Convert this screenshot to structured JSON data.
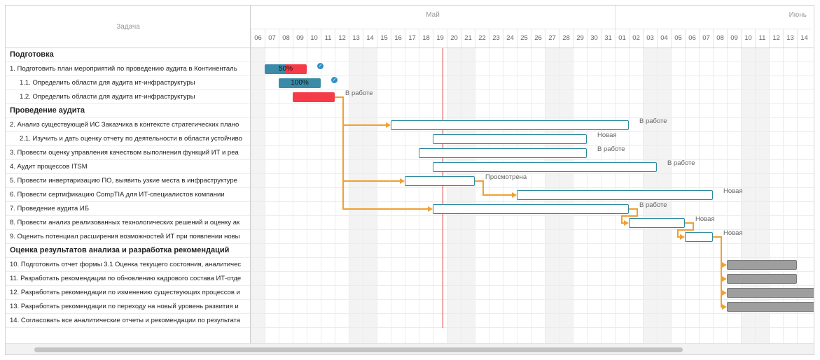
{
  "header": {
    "task_column": "Задача"
  },
  "months": [
    {
      "label": "Май"
    },
    {
      "label": "Июнь"
    }
  ],
  "days": [
    "06",
    "07",
    "08",
    "09",
    "10",
    "11",
    "12",
    "13",
    "14",
    "15",
    "16",
    "17",
    "18",
    "19",
    "20",
    "21",
    "22",
    "23",
    "24",
    "25",
    "26",
    "27",
    "28",
    "29",
    "30",
    "31",
    "01",
    "02",
    "03",
    "04",
    "05",
    "06",
    "07",
    "08",
    "09",
    "10",
    "11",
    "12",
    "13",
    "14"
  ],
  "weekend_days_index": [
    0,
    7,
    8,
    14,
    15,
    21,
    22,
    28,
    29,
    35,
    36
  ],
  "tasks": [
    {
      "label": "Подготовка",
      "group": true
    },
    {
      "label": "1. Подготовить план мероприятий по проведению аудита в Континенталь",
      "indent": 0
    },
    {
      "label": "1.1. Определить области для аудита ит-инфраструктуры",
      "indent": 1
    },
    {
      "label": "1.2. Определить области для аудита ит-инфраструктуры",
      "indent": 1
    },
    {
      "label": "Проведение аудита",
      "group": true
    },
    {
      "label": "2. Анализ существующей ИС Заказчика в контексте стратегических плано",
      "indent": 0
    },
    {
      "label": "2.1. Изучить и дать оценку отчету по деятельности в области устойчиво",
      "indent": 1
    },
    {
      "label": "3. Провести оценку управления качеством выполнения функций ИТ и реа",
      "indent": 0
    },
    {
      "label": "4. Аудит процессов ITSM",
      "indent": 0
    },
    {
      "label": "5. Провести инвертаризацию ПО, выявить узкие места в инфраструктуре",
      "indent": 0
    },
    {
      "label": "6. Провести сертификацию CompTIA для ИТ-специалистов компании",
      "indent": 0
    },
    {
      "label": "7. Проведение аудита ИБ",
      "indent": 0
    },
    {
      "label": "8. Провести анализ реализованных технологических решений и оценку ак",
      "indent": 0
    },
    {
      "label": "9. Оценить потенциал расширения возможностей ИТ при появлении новы",
      "indent": 0
    },
    {
      "label": "Оценка результатов анализа и разработка рекомендаций",
      "group": true
    },
    {
      "label": "10. Подготовить отчет формы 3.1 Оценка текущего состояния, аналитичес",
      "indent": 0
    },
    {
      "label": "11. Разработать рекомендации по обновлению кадрового состава ИТ-отде",
      "indent": 0
    },
    {
      "label": "12. Разработать рекомендации по изменению существующих процессов и",
      "indent": 0
    },
    {
      "label": "13. Разработать рекомендации по переходу на новый уровень развития и",
      "indent": 0
    },
    {
      "label": "14. Согласовать все аналитические отчеты и рекомендации по результата",
      "indent": 0
    }
  ],
  "today_day_index": 13.7,
  "bars": [
    {
      "row": 1,
      "start": 1,
      "end": 4,
      "style": "done",
      "progress": 0.5,
      "label": "50%",
      "check": true
    },
    {
      "row": 2,
      "start": 2,
      "end": 5,
      "style": "done",
      "progress": 1.0,
      "label": "100%",
      "check": true
    },
    {
      "row": 3,
      "start": 3,
      "end": 6,
      "style": "red",
      "status": "В работе"
    },
    {
      "row": 5,
      "start": 10,
      "end": 27,
      "style": "new",
      "status": "В работе"
    },
    {
      "row": 6,
      "start": 13,
      "end": 24,
      "style": "new",
      "status": "Новая"
    },
    {
      "row": 7,
      "start": 12,
      "end": 24,
      "style": "new",
      "status": "В работе"
    },
    {
      "row": 8,
      "start": 13,
      "end": 29,
      "style": "new",
      "status": "В работе"
    },
    {
      "row": 9,
      "start": 11,
      "end": 16,
      "style": "new",
      "status": "Просмотрена"
    },
    {
      "row": 10,
      "start": 19,
      "end": 33,
      "style": "new",
      "status": "Новая"
    },
    {
      "row": 11,
      "start": 13,
      "end": 27,
      "style": "new",
      "status": "В работе"
    },
    {
      "row": 12,
      "start": 27,
      "end": 31,
      "style": "new",
      "status": "Новая"
    },
    {
      "row": 13,
      "start": 31,
      "end": 33,
      "style": "new",
      "status": "Новая"
    },
    {
      "row": 15,
      "start": 34,
      "end": 39,
      "style": "grey"
    },
    {
      "row": 16,
      "start": 34,
      "end": 39,
      "style": "grey"
    },
    {
      "row": 17,
      "start": 34,
      "end": 41,
      "style": "grey"
    },
    {
      "row": 18,
      "start": 34,
      "end": 41,
      "style": "grey"
    }
  ],
  "links": [
    {
      "from": 3,
      "to": 5
    },
    {
      "from": 3,
      "to": 9
    },
    {
      "from": 3,
      "to": 11
    },
    {
      "from": 9,
      "to": 10
    },
    {
      "from": 11,
      "to": 12
    },
    {
      "from": 12,
      "to": 13
    },
    {
      "from": 13,
      "to": 15
    },
    {
      "from": 13,
      "to": 16
    },
    {
      "from": 13,
      "to": 17
    },
    {
      "from": 13,
      "to": 18
    }
  ],
  "colors": {
    "link": "#f0a030",
    "today": "#dd3333",
    "done": "#3b8ba8",
    "red": "#f53b48"
  }
}
